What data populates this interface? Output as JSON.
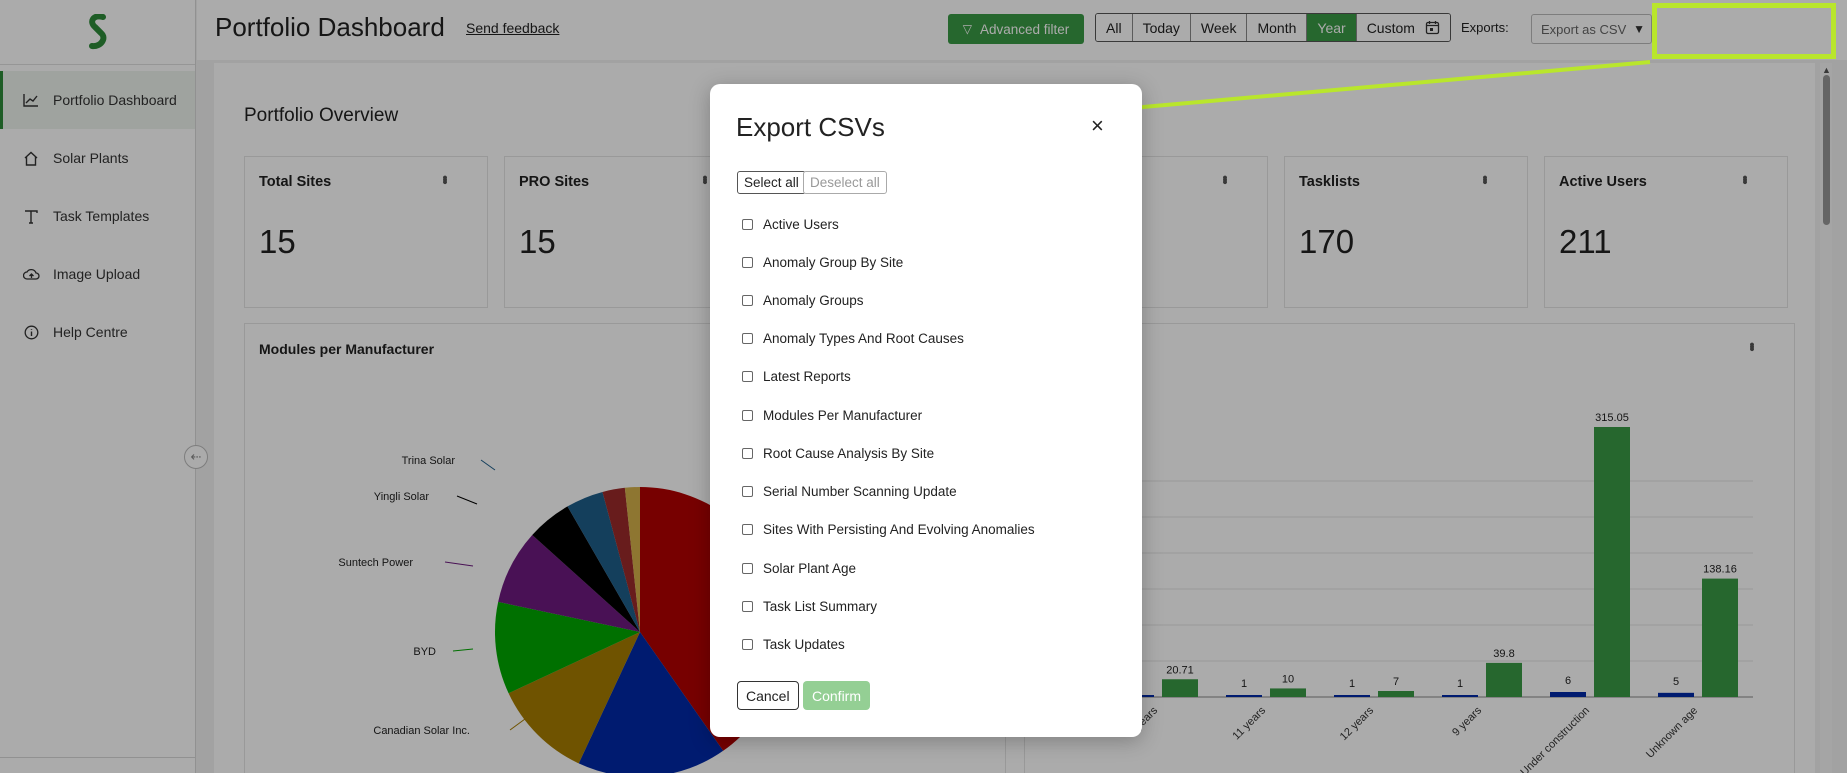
{
  "sidebar": {
    "items": [
      {
        "label": "Portfolio Dashboard",
        "icon": "chart-line-icon",
        "active": true
      },
      {
        "label": "Solar Plants",
        "icon": "home-icon"
      },
      {
        "label": "Task Templates",
        "icon": "template-icon"
      },
      {
        "label": "Image Upload",
        "icon": "cloud-upload-icon"
      },
      {
        "label": "Help Centre",
        "icon": "info-icon"
      }
    ]
  },
  "header": {
    "title": "Portfolio Dashboard",
    "feedback": "Send feedback",
    "advanced_filter": "Advanced filter",
    "ranges": [
      "All",
      "Today",
      "Week",
      "Month",
      "Year",
      "Custom"
    ],
    "selected_range": "Year",
    "exports_label": "Exports:",
    "exports_value": "Export as CSV"
  },
  "overview": {
    "title": "Portfolio Overview",
    "cards": [
      {
        "title": "Total Sites",
        "value": "15"
      },
      {
        "title": "PRO Sites",
        "value": "15"
      },
      {
        "title": "Tasklists",
        "value": "170"
      },
      {
        "title": "Active Users",
        "value": "211"
      }
    ]
  },
  "pie_panel": {
    "title": "Modules per Manufacturer",
    "labels": [
      "Trina Solar",
      "Yingli Solar",
      "Suntech Power",
      "BYD",
      "Canadian Solar Inc."
    ]
  },
  "bar_panel": {
    "categories": [
      "years",
      "11 years",
      "12 years",
      "9 years",
      "Under construction",
      "Unknown age"
    ],
    "blue_labels": [
      "",
      "1",
      "1",
      "1",
      "6",
      "5"
    ],
    "green_labels": [
      "20.71",
      "10",
      "7",
      "39.8",
      "315.05",
      "138.16"
    ]
  },
  "modal": {
    "title": "Export CSVs",
    "close": "×",
    "select_all": "Select all",
    "deselect_all": "Deselect all",
    "options": [
      "Active Users",
      "Anomaly Group By Site",
      "Anomaly Groups",
      "Anomaly Types And Root Causes",
      "Latest Reports",
      "Modules Per Manufacturer",
      "Root Cause Analysis By Site",
      "Serial Number Scanning Update",
      "Sites With Persisting And Evolving Anomalies",
      "Solar Plant Age",
      "Task List Summary",
      "Task Updates"
    ],
    "cancel": "Cancel",
    "confirm": "Confirm"
  },
  "colors": {
    "accent": "#3a9a45",
    "highlight": "#b9e62c",
    "pie": [
      "#b20000",
      "#0029a8",
      "#a67c00",
      "#00a800",
      "#6d1a7f",
      "#000000",
      "#1f5e8a",
      "#9b2a2a",
      "#d4b04a"
    ]
  }
}
